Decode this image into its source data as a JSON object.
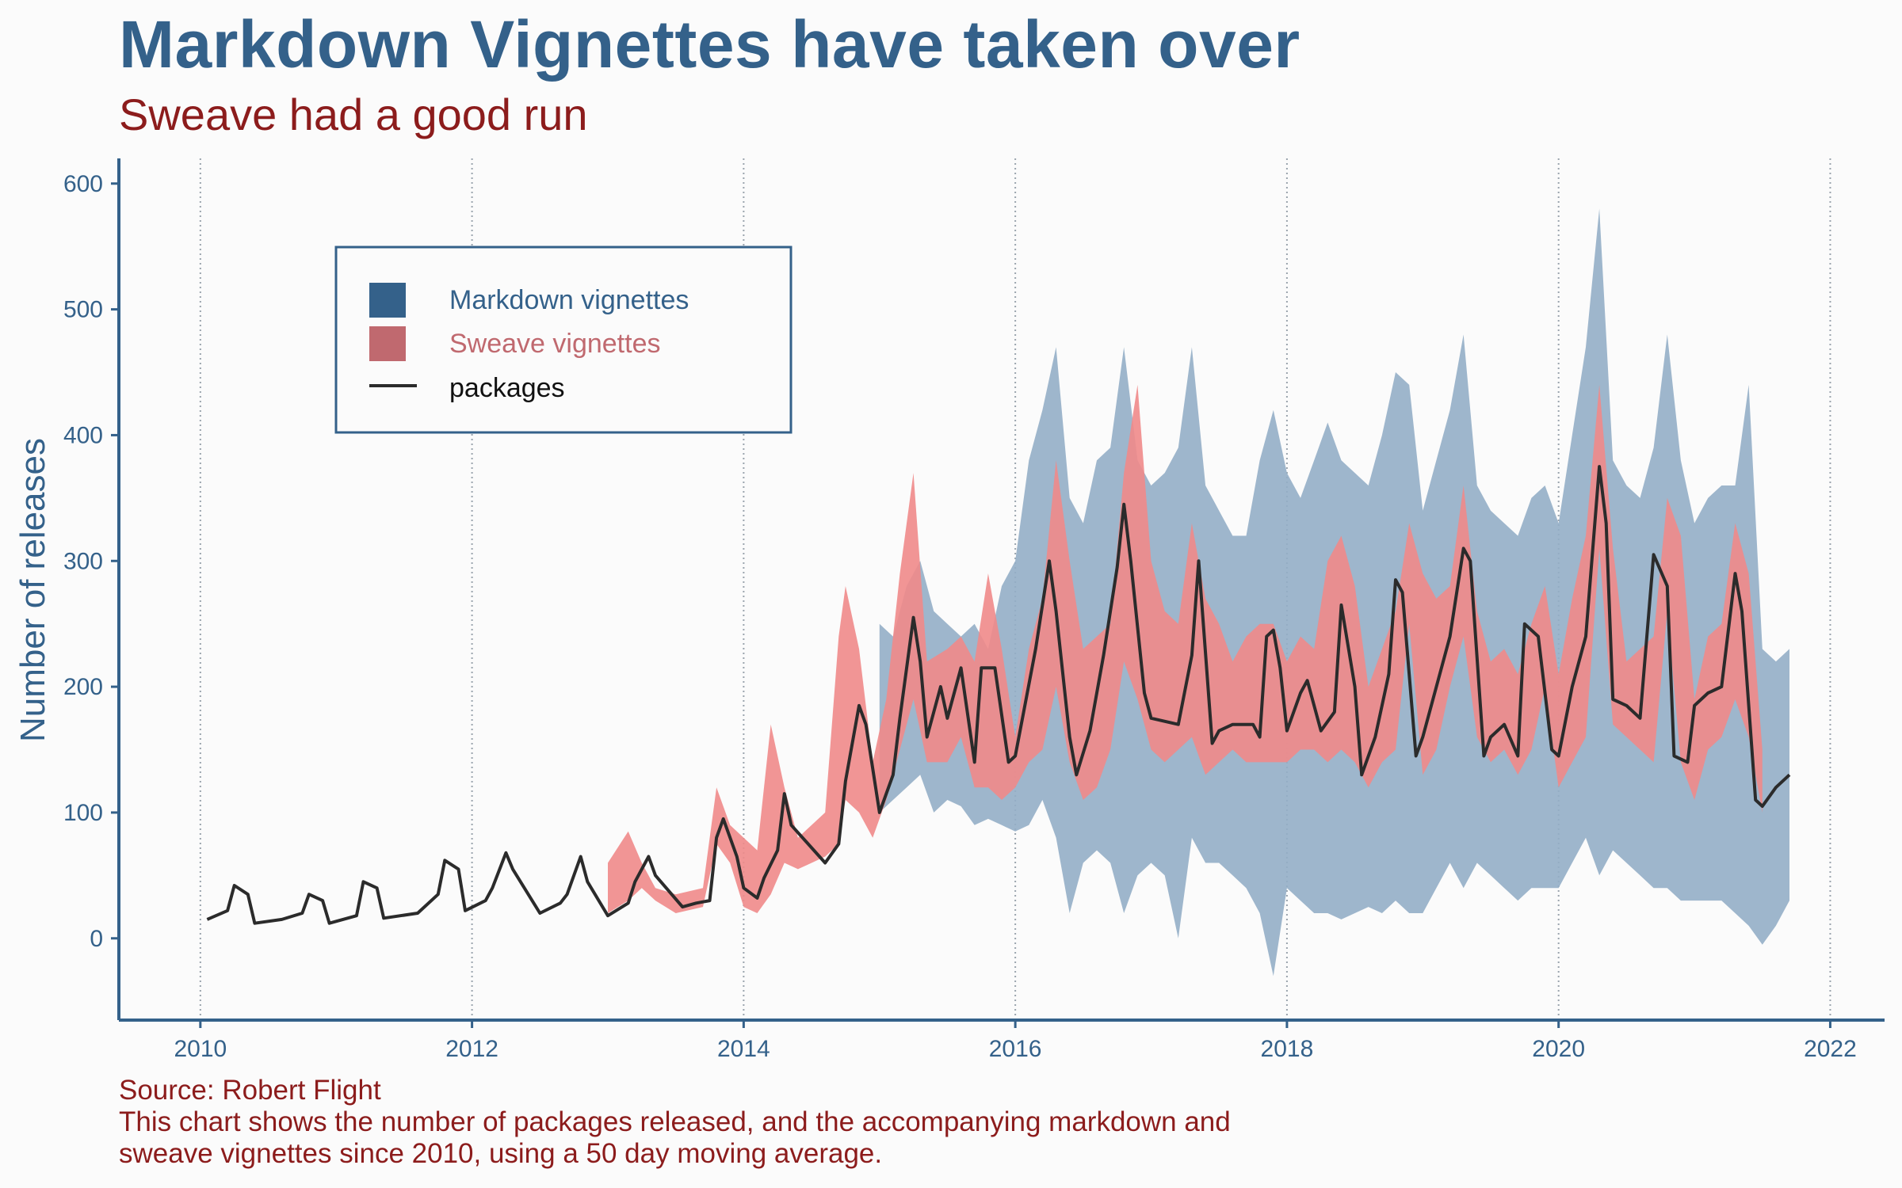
{
  "title": "Markdown Vignettes have taken over",
  "subtitle": "Sweave had a good run",
  "caption": {
    "source": "Source: Robert Flight",
    "line1": "This chart shows the number of packages released, and the accompanying markdown and",
    "line2": "sweave vignettes since 2010, using a 50 day moving average."
  },
  "colors": {
    "title": "#34618a",
    "subtitle": "#8c1c1c",
    "axis": "#34618a",
    "markdown": "#94aec6",
    "markdown_legend": "#34618a",
    "sweave": "#f08a8a",
    "sweave_legend": "#c0696f",
    "packages": "#2b2b2b",
    "grid": "#9aa4ad"
  },
  "chart_data": {
    "type": "area",
    "ylabel": "Number of releases",
    "xlabel": "",
    "xlim": [
      2009.4,
      2022.4
    ],
    "ylim": [
      -65,
      620
    ],
    "x_ticks": [
      2010,
      2012,
      2014,
      2016,
      2018,
      2020,
      2022
    ],
    "y_ticks": [
      0,
      100,
      200,
      300,
      400,
      500,
      600
    ],
    "grid": "vertical dotted lines at x ticks",
    "legend_position": "top-left",
    "legend": [
      {
        "key": "markdown",
        "label": "Markdown vignettes",
        "kind": "fill"
      },
      {
        "key": "sweave",
        "label": "Sweave vignettes",
        "kind": "fill"
      },
      {
        "key": "packages",
        "label": "packages",
        "kind": "line"
      }
    ],
    "series": [
      {
        "name": "packages",
        "x": [
          2010.05,
          2010.2,
          2010.25,
          2010.35,
          2010.4,
          2010.6,
          2010.75,
          2010.8,
          2010.9,
          2010.95,
          2011.15,
          2011.2,
          2011.3,
          2011.35,
          2011.6,
          2011.75,
          2011.8,
          2011.9,
          2011.95,
          2012.1,
          2012.15,
          2012.25,
          2012.3,
          2012.5,
          2012.65,
          2012.7,
          2012.8,
          2012.85,
          2013.0,
          2013.15,
          2013.2,
          2013.3,
          2013.35,
          2013.55,
          2013.65,
          2013.75,
          2013.8,
          2013.85,
          2013.95,
          2014.0,
          2014.1,
          2014.15,
          2014.25,
          2014.3,
          2014.35,
          2014.6,
          2014.7,
          2014.75,
          2014.85,
          2014.9,
          2015.0,
          2015.1,
          2015.15,
          2015.25,
          2015.3,
          2015.35,
          2015.45,
          2015.5,
          2015.6,
          2015.7,
          2015.75,
          2015.85,
          2015.95,
          2016.0,
          2016.15,
          2016.25,
          2016.3,
          2016.4,
          2016.45,
          2016.55,
          2016.65,
          2016.75,
          2016.8,
          2016.85,
          2016.95,
          2017.0,
          2017.2,
          2017.3,
          2017.35,
          2017.45,
          2017.5,
          2017.6,
          2017.75,
          2017.8,
          2017.85,
          2017.9,
          2017.95,
          2018.0,
          2018.1,
          2018.15,
          2018.25,
          2018.35,
          2018.4,
          2018.5,
          2018.55,
          2018.65,
          2018.75,
          2018.8,
          2018.85,
          2018.95,
          2019.0,
          2019.2,
          2019.3,
          2019.35,
          2019.45,
          2019.5,
          2019.6,
          2019.7,
          2019.75,
          2019.85,
          2019.95,
          2020.0,
          2020.1,
          2020.2,
          2020.3,
          2020.35,
          2020.4,
          2020.5,
          2020.6,
          2020.7,
          2020.8,
          2020.85,
          2020.95,
          2021.0,
          2021.1,
          2021.2,
          2021.3,
          2021.35,
          2021.45,
          2021.5,
          2021.6,
          2021.7
        ],
        "values": [
          15,
          22,
          42,
          35,
          12,
          15,
          20,
          35,
          30,
          12,
          18,
          45,
          40,
          16,
          20,
          35,
          62,
          55,
          22,
          30,
          40,
          68,
          55,
          20,
          28,
          35,
          65,
          45,
          18,
          28,
          45,
          65,
          50,
          25,
          28,
          30,
          80,
          95,
          65,
          40,
          32,
          48,
          70,
          115,
          90,
          60,
          75,
          125,
          185,
          170,
          100,
          130,
          175,
          255,
          220,
          160,
          200,
          175,
          215,
          140,
          215,
          215,
          140,
          145,
          230,
          300,
          260,
          160,
          130,
          165,
          225,
          295,
          345,
          300,
          195,
          175,
          170,
          225,
          300,
          155,
          165,
          170,
          170,
          160,
          240,
          245,
          215,
          165,
          195,
          205,
          165,
          180,
          265,
          200,
          130,
          160,
          210,
          285,
          275,
          145,
          160,
          240,
          310,
          300,
          145,
          160,
          170,
          145,
          250,
          240,
          150,
          145,
          200,
          240,
          375,
          330,
          190,
          185,
          175,
          305,
          280,
          145,
          140,
          185,
          195,
          200,
          290,
          260,
          110,
          105,
          120,
          130
        ]
      },
      {
        "name": "Markdown vignettes",
        "x": [
          2015.0,
          2015.1,
          2015.2,
          2015.3,
          2015.4,
          2015.5,
          2015.6,
          2015.7,
          2015.8,
          2015.9,
          2016.0,
          2016.1,
          2016.2,
          2016.3,
          2016.4,
          2016.5,
          2016.6,
          2016.7,
          2016.8,
          2016.9,
          2017.0,
          2017.1,
          2017.2,
          2017.3,
          2017.4,
          2017.5,
          2017.6,
          2017.7,
          2017.8,
          2017.9,
          2018.0,
          2018.1,
          2018.2,
          2018.3,
          2018.4,
          2018.5,
          2018.6,
          2018.7,
          2018.8,
          2018.9,
          2019.0,
          2019.1,
          2019.2,
          2019.3,
          2019.4,
          2019.5,
          2019.6,
          2019.7,
          2019.8,
          2019.9,
          2020.0,
          2020.1,
          2020.2,
          2020.3,
          2020.4,
          2020.5,
          2020.6,
          2020.7,
          2020.8,
          2020.9,
          2021.0,
          2021.1,
          2021.2,
          2021.3,
          2021.4,
          2021.5,
          2021.6,
          2021.7
        ],
        "low": [
          100,
          110,
          120,
          130,
          100,
          110,
          105,
          90,
          95,
          90,
          85,
          90,
          110,
          80,
          20,
          60,
          70,
          60,
          20,
          50,
          60,
          50,
          0,
          80,
          60,
          60,
          50,
          40,
          20,
          -30,
          40,
          30,
          20,
          20,
          15,
          20,
          25,
          20,
          30,
          20,
          20,
          40,
          60,
          40,
          60,
          50,
          40,
          30,
          40,
          40,
          40,
          60,
          80,
          50,
          70,
          60,
          50,
          40,
          40,
          30,
          30,
          30,
          30,
          20,
          10,
          -5,
          10,
          30
        ],
        "high": [
          250,
          240,
          280,
          300,
          260,
          250,
          240,
          250,
          230,
          280,
          300,
          380,
          420,
          470,
          350,
          330,
          380,
          390,
          470,
          380,
          360,
          370,
          390,
          470,
          360,
          340,
          320,
          320,
          380,
          420,
          370,
          350,
          380,
          410,
          380,
          370,
          360,
          400,
          450,
          440,
          340,
          380,
          420,
          480,
          360,
          340,
          330,
          320,
          350,
          360,
          330,
          400,
          470,
          580,
          380,
          360,
          350,
          390,
          480,
          380,
          330,
          350,
          360,
          360,
          440,
          230,
          220,
          230
        ]
      },
      {
        "name": "Sweave vignettes",
        "x": [
          2013.0,
          2013.15,
          2013.25,
          2013.35,
          2013.5,
          2013.7,
          2013.8,
          2013.9,
          2014.0,
          2014.1,
          2014.2,
          2014.3,
          2014.4,
          2014.5,
          2014.6,
          2014.7,
          2014.75,
          2014.85,
          2014.95,
          2015.05,
          2015.15,
          2015.25,
          2015.35,
          2015.5,
          2015.6,
          2015.7,
          2015.8,
          2015.9,
          2016.0,
          2016.1,
          2016.2,
          2016.3,
          2016.4,
          2016.5,
          2016.6,
          2016.7,
          2016.8,
          2016.9,
          2017.0,
          2017.1,
          2017.2,
          2017.3,
          2017.4,
          2017.5,
          2017.6,
          2017.7,
          2017.8,
          2017.9,
          2018.0,
          2018.1,
          2018.2,
          2018.3,
          2018.4,
          2018.5,
          2018.6,
          2018.7,
          2018.8,
          2018.9,
          2019.0,
          2019.1,
          2019.2,
          2019.3,
          2019.4,
          2019.5,
          2019.6,
          2019.7,
          2019.8,
          2019.9,
          2020.0,
          2020.1,
          2020.2,
          2020.3,
          2020.4,
          2020.5,
          2020.6,
          2020.7,
          2020.8,
          2020.9,
          2021.0,
          2021.1,
          2021.2,
          2021.3,
          2021.4,
          2021.5
        ],
        "low": [
          20,
          30,
          40,
          30,
          20,
          25,
          75,
          60,
          25,
          20,
          35,
          60,
          55,
          60,
          65,
          75,
          110,
          100,
          80,
          110,
          150,
          190,
          140,
          140,
          160,
          120,
          120,
          110,
          120,
          140,
          150,
          200,
          140,
          110,
          120,
          150,
          220,
          190,
          150,
          140,
          150,
          160,
          130,
          140,
          150,
          140,
          140,
          140,
          140,
          150,
          150,
          140,
          150,
          140,
          120,
          140,
          150,
          250,
          130,
          150,
          200,
          240,
          160,
          140,
          150,
          130,
          150,
          200,
          120,
          140,
          160,
          310,
          170,
          160,
          150,
          140,
          260,
          140,
          110,
          150,
          160,
          190,
          160,
          100
        ],
        "high": [
          60,
          85,
          60,
          40,
          35,
          40,
          120,
          90,
          80,
          70,
          170,
          120,
          80,
          90,
          100,
          240,
          280,
          230,
          140,
          190,
          290,
          370,
          220,
          230,
          240,
          220,
          290,
          230,
          160,
          230,
          270,
          380,
          300,
          230,
          240,
          250,
          370,
          440,
          300,
          260,
          250,
          330,
          270,
          250,
          220,
          240,
          250,
          250,
          220,
          240,
          230,
          300,
          320,
          280,
          200,
          230,
          260,
          330,
          290,
          270,
          280,
          360,
          260,
          220,
          230,
          210,
          250,
          280,
          210,
          270,
          320,
          440,
          310,
          220,
          230,
          240,
          350,
          320,
          190,
          240,
          250,
          330,
          290,
          150
        ]
      }
    ]
  }
}
